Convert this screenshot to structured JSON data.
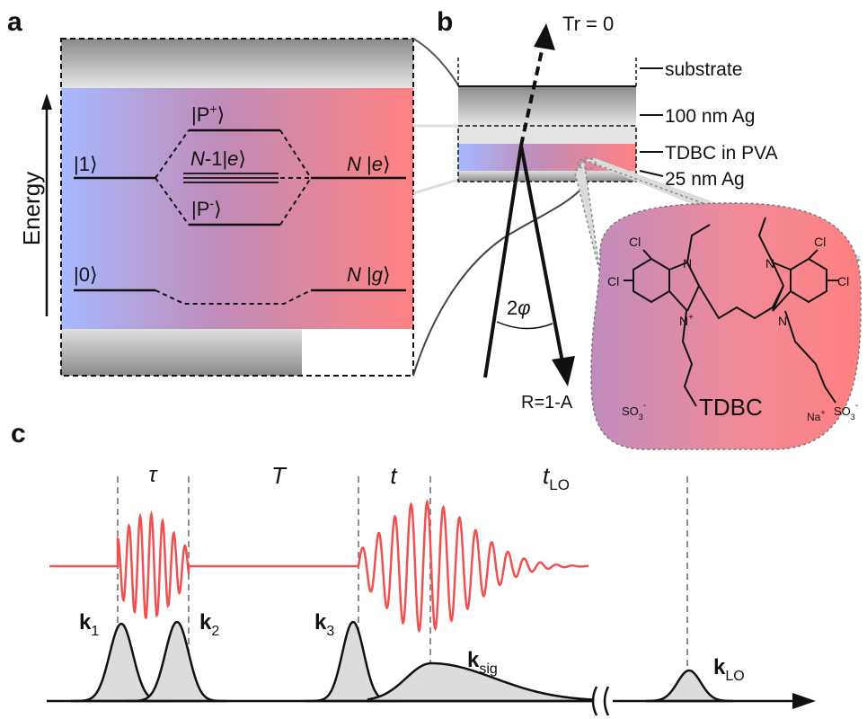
{
  "panels": {
    "a": "a",
    "b": "b",
    "c": "c"
  },
  "panel_a": {
    "axis_label": "Energy",
    "ket_1": "|1⟩",
    "ket_0": "|0⟩",
    "p_plus": {
      "pre": "|P",
      "sup": "+",
      "post": "⟩"
    },
    "p_minus": {
      "pre": "|P",
      "sup": "-",
      "post": "⟩"
    },
    "dark_states": {
      "n": "N",
      "rest": "-1|",
      "e": "e",
      "close": "⟩"
    },
    "n_e": {
      "n": "N",
      "mid": " |",
      "e": "e",
      "close": "⟩"
    },
    "n_g": {
      "n": "N",
      "mid": " |",
      "g": "g",
      "close": "⟩"
    }
  },
  "panel_b": {
    "tr_label": "Tr = 0",
    "r_label": "R=1-A",
    "angle_label": {
      "num": "2",
      "sym": "φ"
    },
    "layers": [
      "substrate",
      "100 nm Ag",
      "TDBC in PVA",
      "25 nm Ag"
    ],
    "molecule": {
      "name": "TDBC",
      "atoms": {
        "cl": "Cl",
        "n": "N",
        "nplus": "N",
        "plus": "+"
      },
      "sulfonate": {
        "base": "SO",
        "sub": "3",
        "sup": "-"
      },
      "sodium": {
        "base": "Na",
        "sup": "+"
      }
    }
  },
  "panel_c": {
    "delays": [
      {
        "text": "τ",
        "italic": true
      },
      {
        "text": "T",
        "italic": true
      },
      {
        "text": "t",
        "italic": true
      },
      {
        "text": "t",
        "sub": "LO",
        "italic": true
      }
    ],
    "pulses": [
      {
        "base": "k",
        "sub": "1"
      },
      {
        "base": "k",
        "sub": "2"
      },
      {
        "base": "k",
        "sub": "3"
      },
      {
        "base": "k",
        "sub": "sig"
      },
      {
        "base": "k",
        "sub": "LO"
      }
    ]
  },
  "colors": {
    "red_field": "#f05050",
    "blue": "#a8b8ff",
    "purple": "#c08cb8",
    "red": "#ff8282",
    "gray_fill": "#dcdcdc",
    "dashed": "#8c8c8c"
  }
}
